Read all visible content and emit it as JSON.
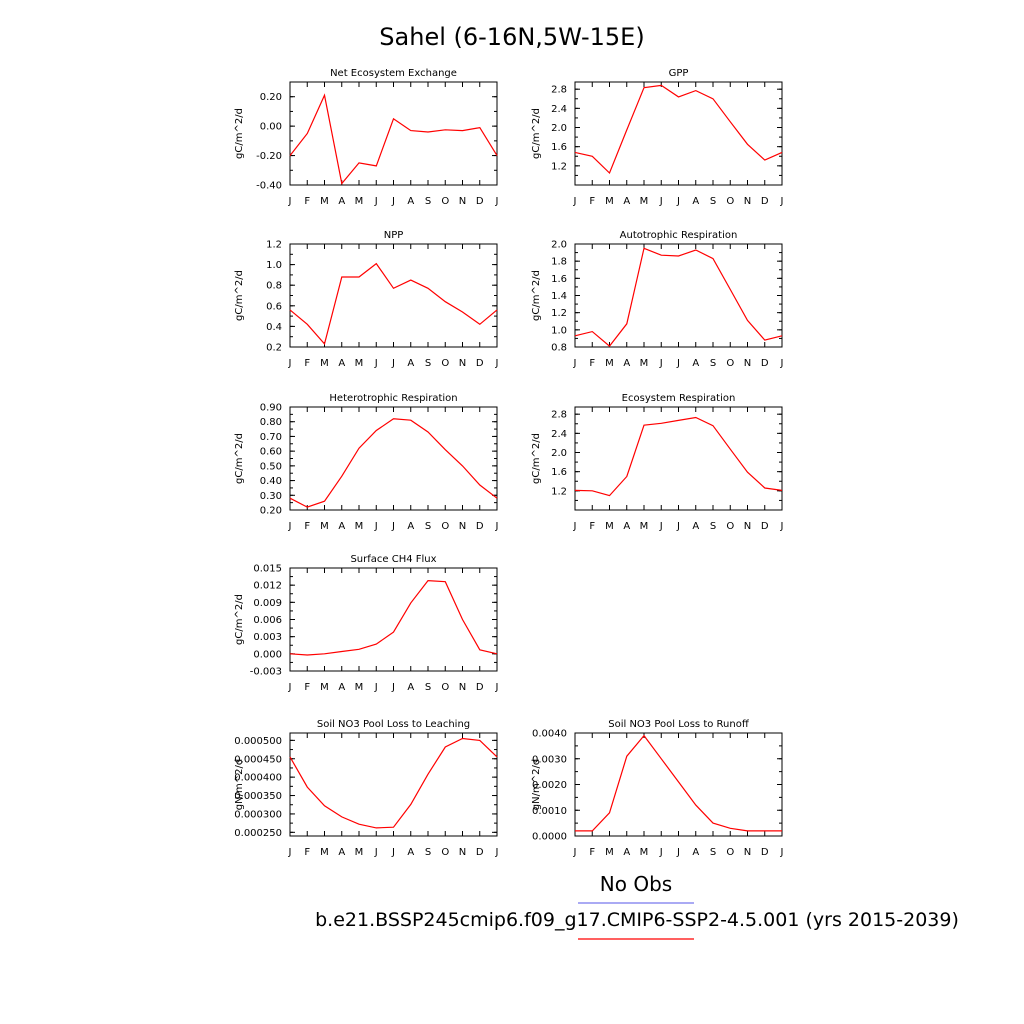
{
  "page": {
    "title": "Sahel (6-16N,5W-15E)",
    "legend": {
      "obs_label": "No Obs",
      "obs_color": "#7777ee",
      "model_label": "b.e21.BSSP245cmip6.f09_g17.CMIP6-SSP2-4.5.001 (yrs 2015-2039)",
      "model_color": "#ff0000"
    }
  },
  "chart_data": [
    {
      "type": "line",
      "title": "Net Ecosystem Exchange",
      "ylabel": "gC/m^2/d",
      "categories": [
        "J",
        "F",
        "M",
        "A",
        "M",
        "J",
        "J",
        "A",
        "S",
        "O",
        "N",
        "D",
        "J"
      ],
      "values": [
        -0.2,
        -0.05,
        0.21,
        -0.39,
        -0.25,
        -0.27,
        0.05,
        -0.03,
        -0.04,
        -0.025,
        -0.03,
        -0.01,
        -0.2
      ],
      "ylim": [
        -0.4,
        0.3
      ],
      "yticks": [
        -0.4,
        -0.2,
        0.0,
        0.2
      ],
      "ytick_labels": [
        "-0.40",
        "-0.20",
        "0.00",
        "0.20"
      ],
      "color": "#ff0000"
    },
    {
      "type": "line",
      "title": "GPP",
      "ylabel": "gC/m^2/d",
      "categories": [
        "J",
        "F",
        "M",
        "A",
        "M",
        "J",
        "J",
        "A",
        "S",
        "O",
        "N",
        "D",
        "J"
      ],
      "values": [
        1.48,
        1.4,
        1.05,
        1.95,
        2.83,
        2.88,
        2.64,
        2.77,
        2.6,
        2.12,
        1.65,
        1.32,
        1.48
      ],
      "ylim": [
        0.8,
        2.95
      ],
      "yticks": [
        1.2,
        1.6,
        2.0,
        2.4,
        2.8
      ],
      "ytick_labels": [
        "1.2",
        "1.6",
        "2.0",
        "2.4",
        "2.8"
      ],
      "color": "#ff0000"
    },
    {
      "type": "line",
      "title": "NPP",
      "ylabel": "gC/m^2/d",
      "categories": [
        "J",
        "F",
        "M",
        "A",
        "M",
        "J",
        "J",
        "A",
        "S",
        "O",
        "N",
        "D",
        "J"
      ],
      "values": [
        0.56,
        0.42,
        0.23,
        0.88,
        0.88,
        1.01,
        0.77,
        0.85,
        0.77,
        0.64,
        0.54,
        0.42,
        0.56
      ],
      "ylim": [
        0.2,
        1.2
      ],
      "yticks": [
        0.2,
        0.4,
        0.6,
        0.8,
        1.0,
        1.2
      ],
      "ytick_labels": [
        "0.2",
        "0.4",
        "0.6",
        "0.8",
        "1.0",
        "1.2"
      ],
      "color": "#ff0000"
    },
    {
      "type": "line",
      "title": "Autotrophic Respiration",
      "ylabel": "gC/m^2/d",
      "categories": [
        "J",
        "F",
        "M",
        "A",
        "M",
        "J",
        "J",
        "A",
        "S",
        "O",
        "N",
        "D",
        "J"
      ],
      "values": [
        0.93,
        0.98,
        0.81,
        1.07,
        1.95,
        1.87,
        1.86,
        1.93,
        1.83,
        1.47,
        1.11,
        0.88,
        0.93
      ],
      "ylim": [
        0.8,
        2.0
      ],
      "yticks": [
        0.8,
        1.0,
        1.2,
        1.4,
        1.6,
        1.8,
        2.0
      ],
      "ytick_labels": [
        "0.8",
        "1.0",
        "1.2",
        "1.4",
        "1.6",
        "1.8",
        "2.0"
      ],
      "color": "#ff0000"
    },
    {
      "type": "line",
      "title": "Heterotrophic Respiration",
      "ylabel": "gC/m^2/d",
      "categories": [
        "J",
        "F",
        "M",
        "A",
        "M",
        "J",
        "J",
        "A",
        "S",
        "O",
        "N",
        "D",
        "J"
      ],
      "values": [
        0.28,
        0.22,
        0.26,
        0.43,
        0.62,
        0.74,
        0.82,
        0.81,
        0.73,
        0.61,
        0.5,
        0.37,
        0.28
      ],
      "ylim": [
        0.2,
        0.9
      ],
      "yticks": [
        0.2,
        0.3,
        0.4,
        0.5,
        0.6,
        0.7,
        0.8,
        0.9
      ],
      "ytick_labels": [
        "0.20",
        "0.30",
        "0.40",
        "0.50",
        "0.60",
        "0.70",
        "0.80",
        "0.90"
      ],
      "color": "#ff0000"
    },
    {
      "type": "line",
      "title": "Ecosystem Respiration",
      "ylabel": "gC/m^2/d",
      "categories": [
        "J",
        "F",
        "M",
        "A",
        "M",
        "J",
        "J",
        "A",
        "S",
        "O",
        "N",
        "D",
        "J"
      ],
      "values": [
        1.21,
        1.2,
        1.1,
        1.5,
        2.57,
        2.61,
        2.67,
        2.73,
        2.56,
        2.07,
        1.59,
        1.26,
        1.21
      ],
      "ylim": [
        0.8,
        2.95
      ],
      "yticks": [
        1.2,
        1.6,
        2.0,
        2.4,
        2.8
      ],
      "ytick_labels": [
        "1.2",
        "1.6",
        "2.0",
        "2.4",
        "2.8"
      ],
      "color": "#ff0000"
    },
    {
      "type": "line",
      "title": "Surface CH4 Flux",
      "ylabel": "gC/m^2/d",
      "categories": [
        "J",
        "F",
        "M",
        "A",
        "M",
        "J",
        "J",
        "A",
        "S",
        "O",
        "N",
        "D",
        "J"
      ],
      "values": [
        0.0,
        -0.0002,
        0.0,
        0.0004,
        0.0008,
        0.0017,
        0.0038,
        0.0089,
        0.0128,
        0.0126,
        0.006,
        0.0007,
        0.0
      ],
      "ylim": [
        -0.003,
        0.015
      ],
      "yticks": [
        -0.003,
        0.0,
        0.003,
        0.006,
        0.009,
        0.012,
        0.015
      ],
      "ytick_labels": [
        "-0.003",
        "0.000",
        "0.003",
        "0.006",
        "0.009",
        "0.012",
        "0.015"
      ],
      "color": "#ff0000"
    },
    {
      "type": "line",
      "title": "Soil NO3 Pool Loss to Leaching",
      "ylabel": "gN/m^2/d",
      "categories": [
        "J",
        "F",
        "M",
        "A",
        "M",
        "J",
        "J",
        "A",
        "S",
        "O",
        "N",
        "D",
        "J"
      ],
      "values": [
        0.000455,
        0.000373,
        0.000322,
        0.000292,
        0.000272,
        0.000262,
        0.000264,
        0.000326,
        0.000408,
        0.000482,
        0.000505,
        0.0005,
        0.000455
      ],
      "ylim": [
        0.00024,
        0.00052
      ],
      "yticks": [
        0.00025,
        0.0003,
        0.00035,
        0.0004,
        0.00045,
        0.0005
      ],
      "ytick_labels": [
        "0.000250",
        "0.000300",
        "0.000350",
        "0.000400",
        "0.000450",
        "0.000500"
      ],
      "color": "#ff0000"
    },
    {
      "type": "line",
      "title": "Soil NO3 Pool Loss to Runoff",
      "ylabel": "gN/m^2/d",
      "categories": [
        "J",
        "F",
        "M",
        "A",
        "M",
        "J",
        "J",
        "A",
        "S",
        "O",
        "N",
        "D",
        "J"
      ],
      "values": [
        0.0002,
        0.0002,
        0.0009,
        0.0031,
        0.0039,
        0.003,
        0.0021,
        0.0012,
        0.0005,
        0.0003,
        0.0002,
        0.0002,
        0.0002
      ],
      "ylim": [
        0.0,
        0.004
      ],
      "yticks": [
        0.0,
        0.001,
        0.002,
        0.003,
        0.004
      ],
      "ytick_labels": [
        "0.0000",
        "0.0010",
        "0.0020",
        "0.0030",
        "0.0040"
      ],
      "color": "#ff0000"
    }
  ]
}
